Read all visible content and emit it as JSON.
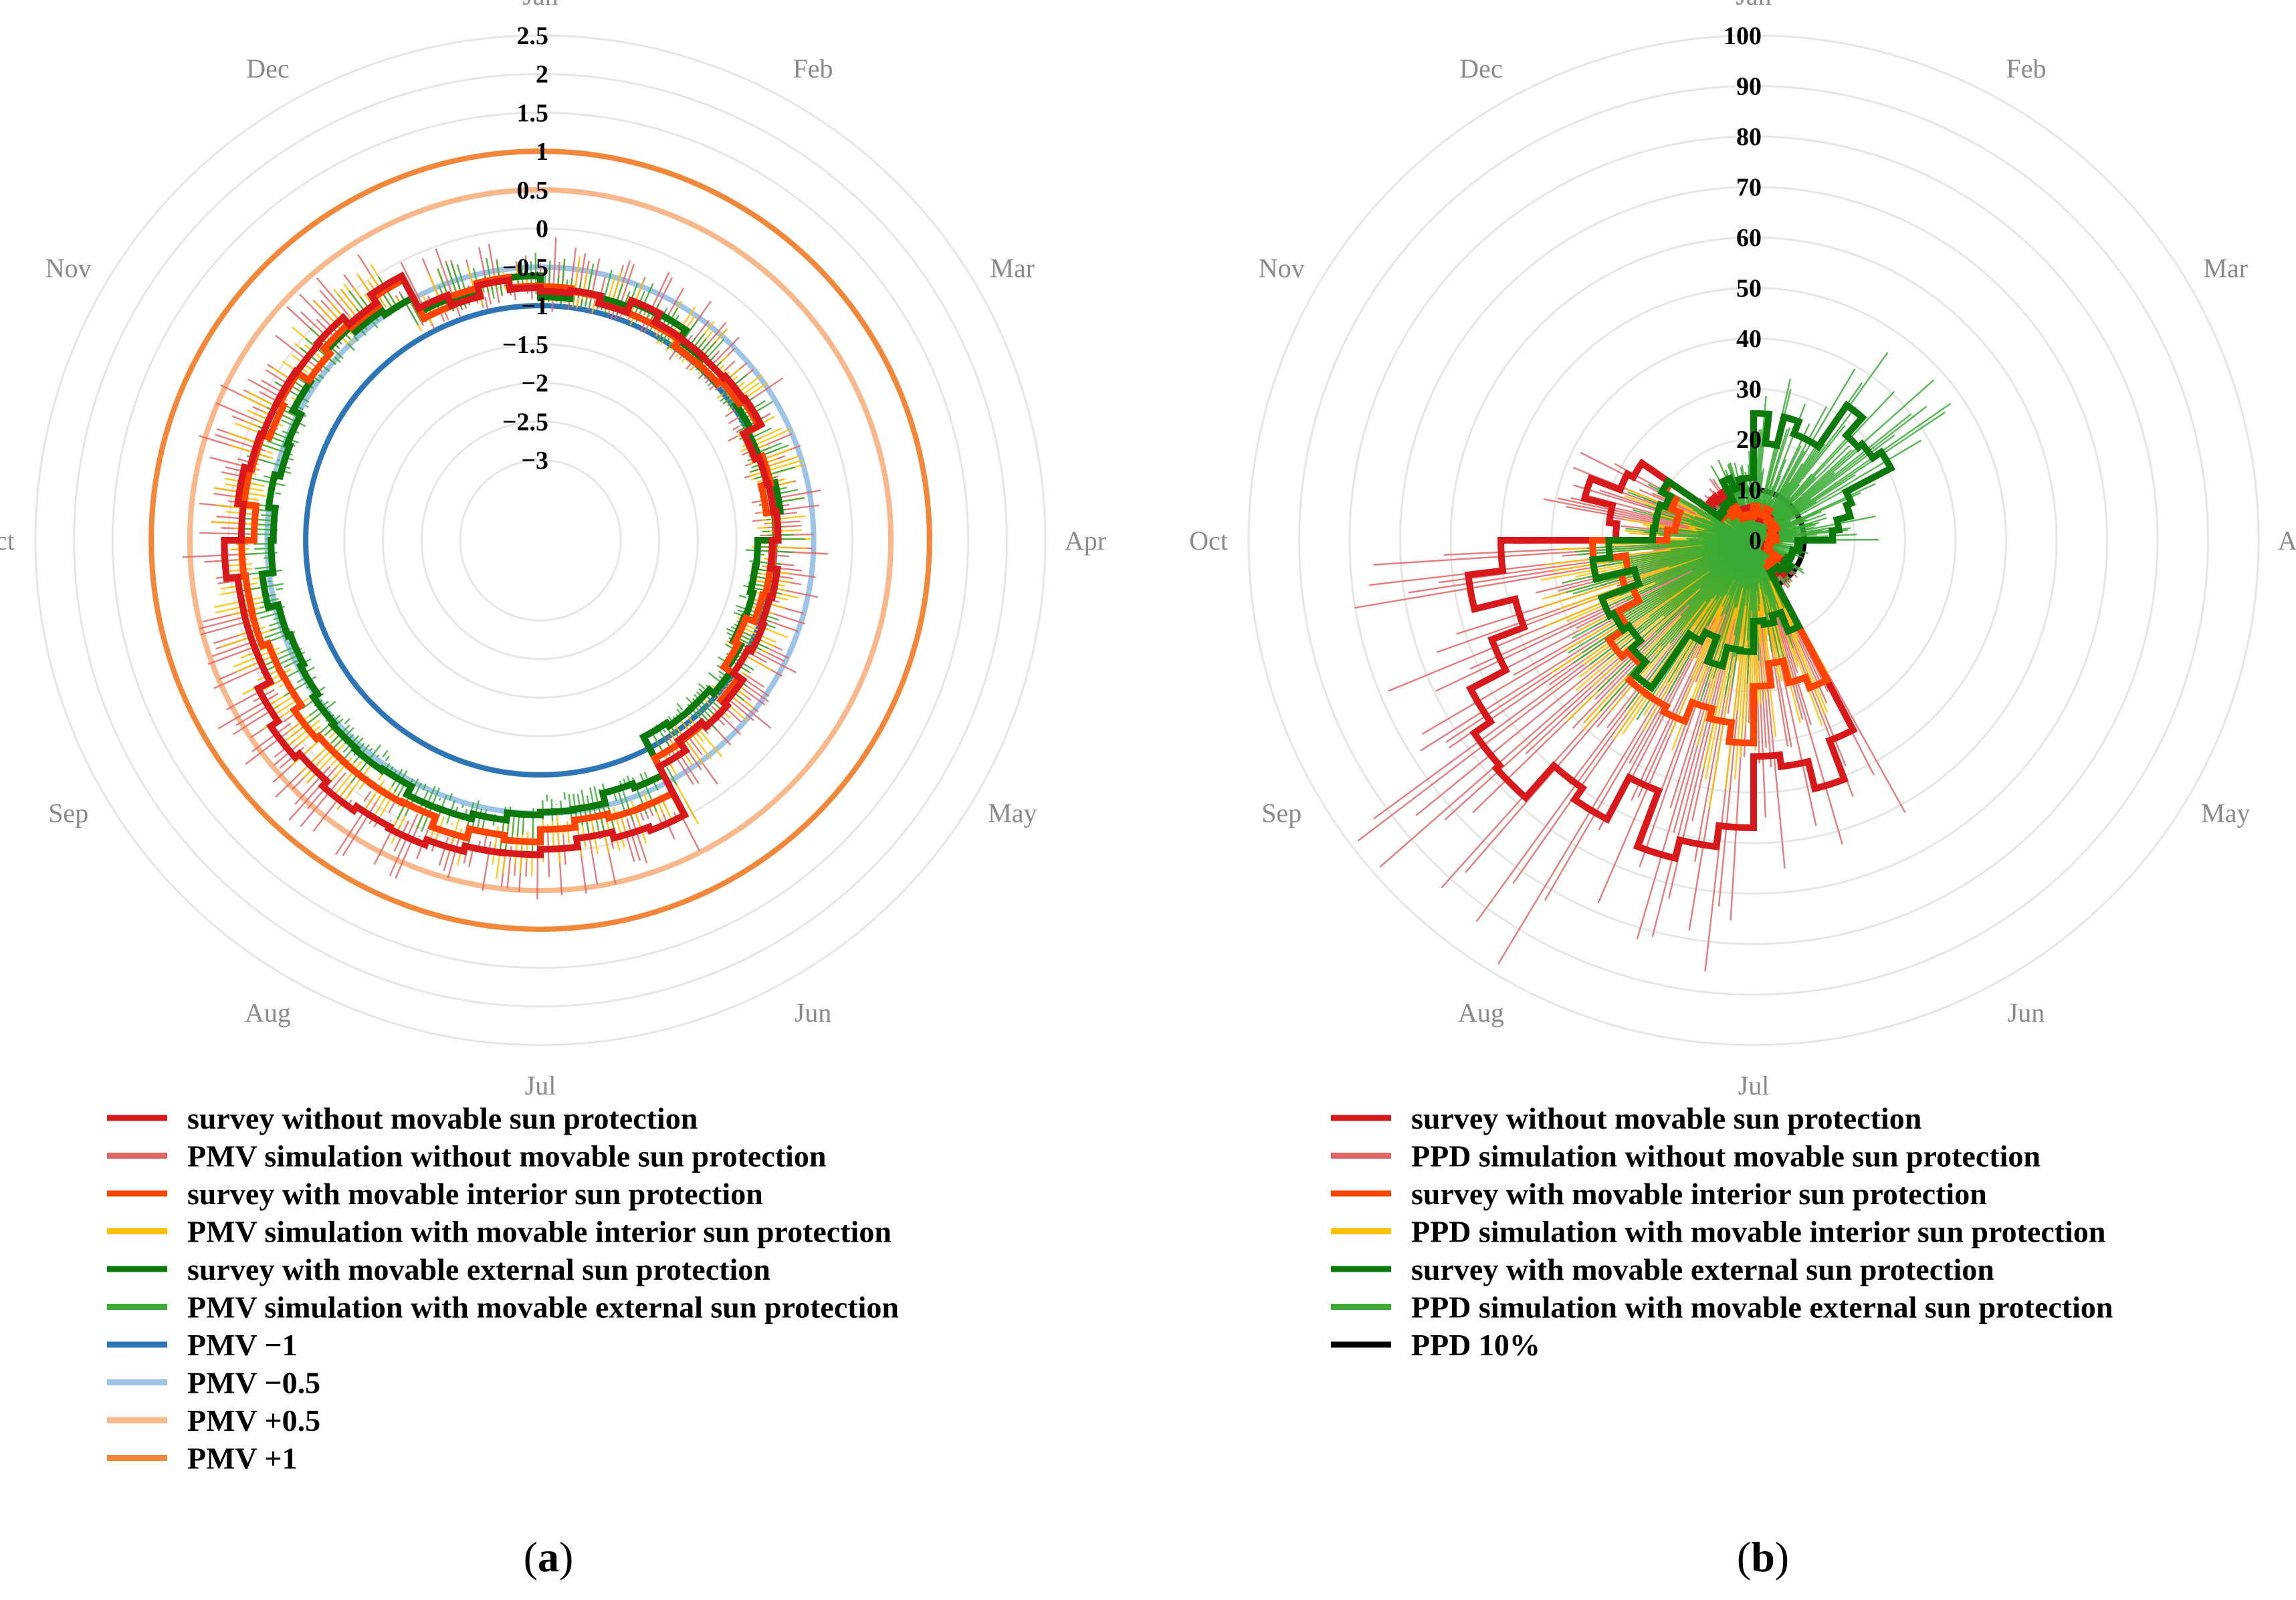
{
  "chart_data": [
    {
      "panel": "a",
      "type": "radar",
      "panel_label": "a",
      "months": [
        "Jan",
        "Feb",
        "Mar",
        "Apr",
        "May",
        "Jun",
        "Jul",
        "Aug",
        "Sep",
        "Oct",
        "Nov",
        "Dec"
      ],
      "radial_ticks": [
        "2.5",
        "2",
        "1.5",
        "1",
        "0.5",
        "0",
        "−0.5",
        "−1",
        "−1.5",
        "−2",
        "−2.5",
        "−3"
      ],
      "rlim": [
        -3,
        2.5
      ],
      "reference_rings": [
        {
          "name": "PMV −1",
          "value": -1,
          "color": "#2e75b6"
        },
        {
          "name": "PMV −0.5",
          "value": -0.5,
          "color": "#9dc3e6"
        },
        {
          "name": "PMV +0.5",
          "value": 0.5,
          "color": "#f8b88b"
        },
        {
          "name": "PMV +1",
          "value": 1,
          "color": "#f2873a"
        }
      ],
      "series": [
        {
          "name": "survey with movable external sun protection",
          "color": "#0b7a0b",
          "kind": "survey",
          "monthly": [
            -0.8,
            -0.9,
            -1.0,
            -1.2,
            -1.1,
            -0.6,
            -0.4,
            -0.5,
            -0.5,
            -0.5,
            -0.4,
            -0.7
          ]
        },
        {
          "name": "survey with movable interior sun protection",
          "color": "#ff4500",
          "kind": "survey",
          "monthly": [
            -0.8,
            -0.9,
            -1.0,
            -1.1,
            -0.9,
            -0.3,
            -0.15,
            -0.2,
            -0.2,
            -0.25,
            -0.3,
            -0.7
          ]
        },
        {
          "name": "survey without movable sun protection",
          "color": "#d7191c",
          "kind": "survey",
          "monthly": [
            -0.8,
            -0.9,
            -1.0,
            -1.0,
            -0.8,
            -0.1,
            0.1,
            0.15,
            0.0,
            -0.1,
            -0.25,
            -0.7
          ]
        }
      ],
      "legend": [
        {
          "label": "survey without movable sun protection",
          "color": "#d7191c"
        },
        {
          "label": "PMV simulation without movable sun protection",
          "color": "#e06666"
        },
        {
          "label": "survey with movable interior sun protection",
          "color": "#ff4500"
        },
        {
          "label": "PMV simulation with movable interior sun protection",
          "color": "#ffc000"
        },
        {
          "label": "survey with movable external sun protection",
          "color": "#0b7a0b"
        },
        {
          "label": "PMV simulation with movable external sun protection",
          "color": "#3aaa35"
        },
        {
          "label": "PMV −1",
          "color": "#2e75b6"
        },
        {
          "label": "PMV −0.5",
          "color": "#9dc3e6"
        },
        {
          "label": "PMV +0.5",
          "color": "#f8b88b"
        },
        {
          "label": "PMV +1",
          "color": "#f2873a"
        }
      ]
    },
    {
      "panel": "b",
      "type": "radar",
      "panel_label": "b",
      "months": [
        "Jan",
        "Feb",
        "Mar",
        "Apr",
        "May",
        "Jun",
        "Jul",
        "Aug",
        "Sep",
        "Oct",
        "Nov",
        "Dec"
      ],
      "radial_ticks": [
        "100",
        "90",
        "80",
        "70",
        "60",
        "50",
        "40",
        "30",
        "20",
        "10",
        "0"
      ],
      "rlim": [
        0,
        100
      ],
      "reference_rings": [
        {
          "name": "PPD 10%",
          "value": 10,
          "color": "#000000"
        }
      ],
      "series": [
        {
          "name": "survey without movable sun protection",
          "color": "#d7191c",
          "kind": "survey",
          "monthly": [
            5,
            5,
            4,
            3,
            8,
            45,
            58,
            66,
            55,
            30,
            10,
            6
          ]
        },
        {
          "name": "survey with movable interior sun protection",
          "color": "#ff4500",
          "kind": "survey",
          "monthly": [
            6,
            5,
            4,
            3,
            6,
            28,
            36,
            35,
            30,
            18,
            7,
            5
          ]
        },
        {
          "name": "survey with movable external sun protection",
          "color": "#0b7a0b",
          "kind": "survey",
          "monthly": [
            22,
            32,
            18,
            8,
            8,
            18,
            24,
            32,
            28,
            18,
            8,
            12
          ]
        }
      ],
      "legend": [
        {
          "label": "survey without movable sun protection",
          "color": "#d7191c"
        },
        {
          "label": "PPD simulation without movable sun protection",
          "color": "#e06666"
        },
        {
          "label": "survey with movable interior sun protection",
          "color": "#ff4500"
        },
        {
          "label": "PPD simulation with movable interior sun protection",
          "color": "#ffc000"
        },
        {
          "label": "survey with movable external sun protection",
          "color": "#0b7a0b"
        },
        {
          "label": "PPD simulation with movable external sun protection",
          "color": "#3aaa35"
        },
        {
          "label": "PPD 10%",
          "color": "#000000"
        }
      ]
    }
  ]
}
